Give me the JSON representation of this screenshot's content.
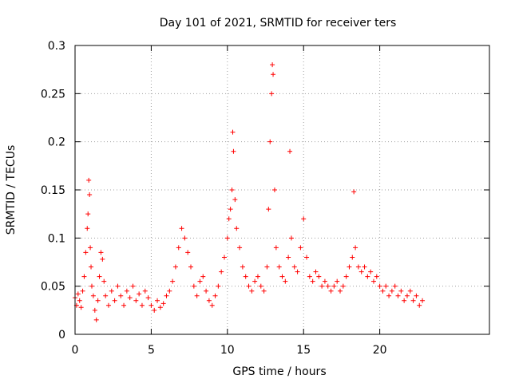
{
  "chart_data": {
    "type": "scatter",
    "title": "Day 101 of 2021, SRMTID for receiver ters",
    "xlabel": "GPS time / hours",
    "ylabel": "SRMTID / TECUs",
    "xlim": [
      0,
      27.2
    ],
    "ylim": [
      0,
      0.3
    ],
    "grid": true,
    "marker": "+",
    "series_color": "#ff0000",
    "x_ticks": [
      {
        "value": 0,
        "label": "0"
      },
      {
        "value": 5,
        "label": "5"
      },
      {
        "value": 10,
        "label": "10"
      },
      {
        "value": 15,
        "label": "15"
      },
      {
        "value": 20,
        "label": "20"
      }
    ],
    "y_ticks": [
      {
        "value": 0,
        "label": "0"
      },
      {
        "value": 0.05,
        "label": "0.05"
      },
      {
        "value": 0.1,
        "label": "0.1"
      },
      {
        "value": 0.15,
        "label": "0.15"
      },
      {
        "value": 0.2,
        "label": "0.2"
      },
      {
        "value": 0.25,
        "label": "0.25"
      },
      {
        "value": 0.3,
        "label": "0.3"
      }
    ],
    "series": [
      {
        "name": "SRMTID",
        "points": [
          [
            0.0,
            0.038
          ],
          [
            0.1,
            0.03
          ],
          [
            0.2,
            0.042
          ],
          [
            0.3,
            0.035
          ],
          [
            0.4,
            0.028
          ],
          [
            0.5,
            0.045
          ],
          [
            0.6,
            0.06
          ],
          [
            0.7,
            0.085
          ],
          [
            0.8,
            0.11
          ],
          [
            0.85,
            0.125
          ],
          [
            0.9,
            0.16
          ],
          [
            0.95,
            0.145
          ],
          [
            1.0,
            0.09
          ],
          [
            1.05,
            0.07
          ],
          [
            1.1,
            0.05
          ],
          [
            1.2,
            0.04
          ],
          [
            1.3,
            0.025
          ],
          [
            1.4,
            0.015
          ],
          [
            1.5,
            0.035
          ],
          [
            1.6,
            0.06
          ],
          [
            1.7,
            0.085
          ],
          [
            1.8,
            0.078
          ],
          [
            1.9,
            0.055
          ],
          [
            2.0,
            0.04
          ],
          [
            2.2,
            0.03
          ],
          [
            2.4,
            0.045
          ],
          [
            2.6,
            0.035
          ],
          [
            2.8,
            0.05
          ],
          [
            3.0,
            0.04
          ],
          [
            3.2,
            0.03
          ],
          [
            3.4,
            0.045
          ],
          [
            3.6,
            0.038
          ],
          [
            3.8,
            0.05
          ],
          [
            4.0,
            0.035
          ],
          [
            4.2,
            0.042
          ],
          [
            4.4,
            0.03
          ],
          [
            4.6,
            0.045
          ],
          [
            4.8,
            0.038
          ],
          [
            5.0,
            0.03
          ],
          [
            5.2,
            0.025
          ],
          [
            5.4,
            0.035
          ],
          [
            5.6,
            0.028
          ],
          [
            5.8,
            0.032
          ],
          [
            6.0,
            0.04
          ],
          [
            6.2,
            0.045
          ],
          [
            6.4,
            0.055
          ],
          [
            6.6,
            0.07
          ],
          [
            6.8,
            0.09
          ],
          [
            7.0,
            0.11
          ],
          [
            7.2,
            0.1
          ],
          [
            7.4,
            0.085
          ],
          [
            7.6,
            0.07
          ],
          [
            7.8,
            0.05
          ],
          [
            8.0,
            0.04
          ],
          [
            8.2,
            0.055
          ],
          [
            8.4,
            0.06
          ],
          [
            8.6,
            0.045
          ],
          [
            8.8,
            0.035
          ],
          [
            9.0,
            0.03
          ],
          [
            9.2,
            0.04
          ],
          [
            9.4,
            0.05
          ],
          [
            9.6,
            0.065
          ],
          [
            9.8,
            0.08
          ],
          [
            10.0,
            0.1
          ],
          [
            10.1,
            0.12
          ],
          [
            10.2,
            0.13
          ],
          [
            10.3,
            0.15
          ],
          [
            10.35,
            0.21
          ],
          [
            10.4,
            0.19
          ],
          [
            10.5,
            0.14
          ],
          [
            10.6,
            0.11
          ],
          [
            10.8,
            0.09
          ],
          [
            11.0,
            0.07
          ],
          [
            11.2,
            0.06
          ],
          [
            11.4,
            0.05
          ],
          [
            11.6,
            0.045
          ],
          [
            11.8,
            0.055
          ],
          [
            12.0,
            0.06
          ],
          [
            12.2,
            0.05
          ],
          [
            12.4,
            0.045
          ],
          [
            12.6,
            0.07
          ],
          [
            12.7,
            0.13
          ],
          [
            12.8,
            0.2
          ],
          [
            12.9,
            0.25
          ],
          [
            12.95,
            0.28
          ],
          [
            13.0,
            0.27
          ],
          [
            13.1,
            0.15
          ],
          [
            13.2,
            0.09
          ],
          [
            13.4,
            0.07
          ],
          [
            13.6,
            0.06
          ],
          [
            13.8,
            0.055
          ],
          [
            14.0,
            0.08
          ],
          [
            14.1,
            0.19
          ],
          [
            14.2,
            0.1
          ],
          [
            14.4,
            0.07
          ],
          [
            14.6,
            0.065
          ],
          [
            14.8,
            0.09
          ],
          [
            15.0,
            0.12
          ],
          [
            15.2,
            0.08
          ],
          [
            15.4,
            0.06
          ],
          [
            15.6,
            0.055
          ],
          [
            15.8,
            0.065
          ],
          [
            16.0,
            0.06
          ],
          [
            16.2,
            0.05
          ],
          [
            16.4,
            0.055
          ],
          [
            16.6,
            0.05
          ],
          [
            16.8,
            0.045
          ],
          [
            17.0,
            0.05
          ],
          [
            17.2,
            0.055
          ],
          [
            17.4,
            0.045
          ],
          [
            17.6,
            0.05
          ],
          [
            17.8,
            0.06
          ],
          [
            18.0,
            0.07
          ],
          [
            18.2,
            0.08
          ],
          [
            18.3,
            0.148
          ],
          [
            18.4,
            0.09
          ],
          [
            18.6,
            0.07
          ],
          [
            18.8,
            0.065
          ],
          [
            19.0,
            0.07
          ],
          [
            19.2,
            0.06
          ],
          [
            19.4,
            0.065
          ],
          [
            19.6,
            0.055
          ],
          [
            19.8,
            0.06
          ],
          [
            20.0,
            0.05
          ],
          [
            20.2,
            0.045
          ],
          [
            20.4,
            0.05
          ],
          [
            20.6,
            0.04
          ],
          [
            20.8,
            0.045
          ],
          [
            21.0,
            0.05
          ],
          [
            21.2,
            0.04
          ],
          [
            21.4,
            0.045
          ],
          [
            21.6,
            0.035
          ],
          [
            21.8,
            0.04
          ],
          [
            22.0,
            0.045
          ],
          [
            22.2,
            0.035
          ],
          [
            22.4,
            0.04
          ],
          [
            22.6,
            0.03
          ],
          [
            22.8,
            0.035
          ]
        ]
      }
    ]
  }
}
